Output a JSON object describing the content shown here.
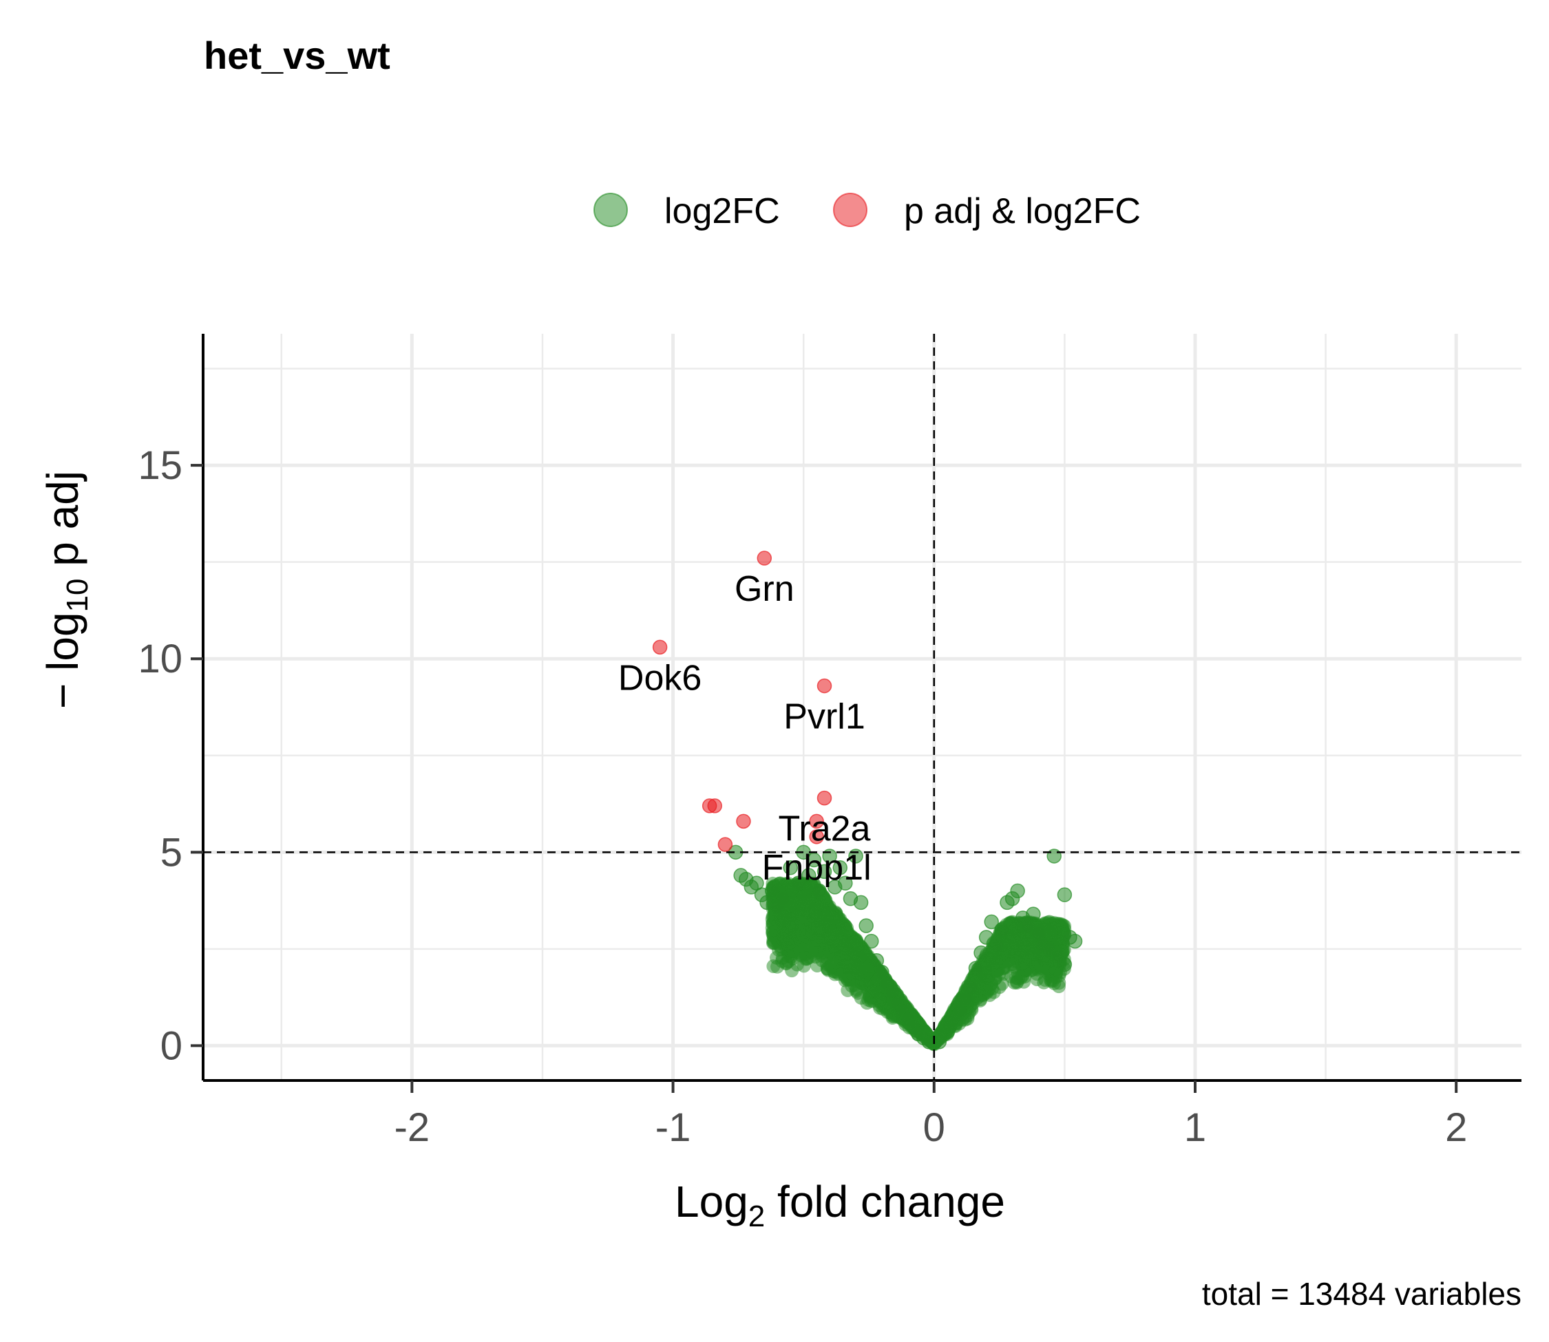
{
  "chart_data": {
    "type": "scatter",
    "title": "het_vs_wt",
    "xlabel": "Log2 fold change",
    "ylabel": "−log10 p adj",
    "xlim": [
      -2.8,
      2.25
    ],
    "ylim": [
      -0.9,
      18.4
    ],
    "xticks": [
      -2,
      -1,
      0,
      1,
      2
    ],
    "yticks": [
      0,
      5,
      10,
      15
    ],
    "grid": true,
    "legend_position": "top",
    "thresholds": {
      "x": 0,
      "y": 5
    },
    "caption": "total = 13484 variables",
    "series": [
      {
        "name": "log2FC",
        "color": "#228B22",
        "points": [
          [
            -0.76,
            5.0
          ],
          [
            -0.74,
            4.4
          ],
          [
            -0.72,
            4.3
          ],
          [
            -0.7,
            4.1
          ],
          [
            -0.68,
            4.2
          ],
          [
            -0.66,
            3.9
          ],
          [
            -0.64,
            3.7
          ],
          [
            -0.62,
            4.0
          ],
          [
            -0.6,
            3.6
          ],
          [
            -0.58,
            3.8
          ],
          [
            -0.55,
            4.6
          ],
          [
            -0.52,
            4.2
          ],
          [
            -0.5,
            5.0
          ],
          [
            -0.48,
            4.4
          ],
          [
            -0.46,
            4.8
          ],
          [
            -0.44,
            4.0
          ],
          [
            -0.42,
            4.5
          ],
          [
            -0.4,
            4.9
          ],
          [
            -0.38,
            4.1
          ],
          [
            -0.36,
            4.6
          ],
          [
            -0.34,
            4.2
          ],
          [
            -0.32,
            3.8
          ],
          [
            -0.3,
            4.9
          ],
          [
            -0.28,
            3.7
          ],
          [
            -0.26,
            3.1
          ],
          [
            -0.24,
            2.7
          ],
          [
            -0.22,
            2.2
          ],
          [
            -0.2,
            1.9
          ],
          [
            -0.18,
            1.6
          ],
          [
            -0.16,
            1.4
          ],
          [
            -0.14,
            1.1
          ],
          [
            -0.12,
            0.9
          ],
          [
            -0.1,
            0.7
          ],
          [
            -0.08,
            0.5
          ],
          [
            -0.06,
            0.3
          ],
          [
            -0.04,
            0.2
          ],
          [
            -0.02,
            0.1
          ],
          [
            0.02,
            0.1
          ],
          [
            0.04,
            0.3
          ],
          [
            0.06,
            0.5
          ],
          [
            0.08,
            0.7
          ],
          [
            0.1,
            0.9
          ],
          [
            0.12,
            1.2
          ],
          [
            0.14,
            1.5
          ],
          [
            0.16,
            2.0
          ],
          [
            0.18,
            2.4
          ],
          [
            0.2,
            2.8
          ],
          [
            0.22,
            3.2
          ],
          [
            0.24,
            2.6
          ],
          [
            0.26,
            3.0
          ],
          [
            0.28,
            3.7
          ],
          [
            0.3,
            3.8
          ],
          [
            0.32,
            4.0
          ],
          [
            0.34,
            3.3
          ],
          [
            0.36,
            3.1
          ],
          [
            0.38,
            3.4
          ],
          [
            0.4,
            2.9
          ],
          [
            0.42,
            2.6
          ],
          [
            0.44,
            2.5
          ],
          [
            0.46,
            4.9
          ],
          [
            0.5,
            3.9
          ],
          [
            0.5,
            2.1
          ],
          [
            0.52,
            2.8
          ],
          [
            0.54,
            2.7
          ],
          [
            0.48,
            2.3
          ]
        ]
      },
      {
        "name": "p adj & log2FC",
        "color": "#E8191E",
        "points": [
          [
            -0.65,
            12.6
          ],
          [
            -1.05,
            10.3
          ],
          [
            -0.42,
            9.3
          ],
          [
            -0.42,
            6.4
          ],
          [
            -0.86,
            6.2
          ],
          [
            -0.84,
            6.2
          ],
          [
            -0.73,
            5.8
          ],
          [
            -0.45,
            5.8
          ],
          [
            -0.45,
            5.4
          ],
          [
            -0.8,
            5.2
          ]
        ]
      }
    ],
    "labels": [
      {
        "text": "Grn",
        "x": -0.65,
        "y": 12.6
      },
      {
        "text": "Dok6",
        "x": -1.05,
        "y": 10.3
      },
      {
        "text": "Pvrl1",
        "x": -0.42,
        "y": 9.3
      },
      {
        "text": "Tra2a",
        "x": -0.42,
        "y": 6.4
      },
      {
        "text": "Fnbp1l",
        "x": -0.45,
        "y": 5.4
      }
    ]
  }
}
